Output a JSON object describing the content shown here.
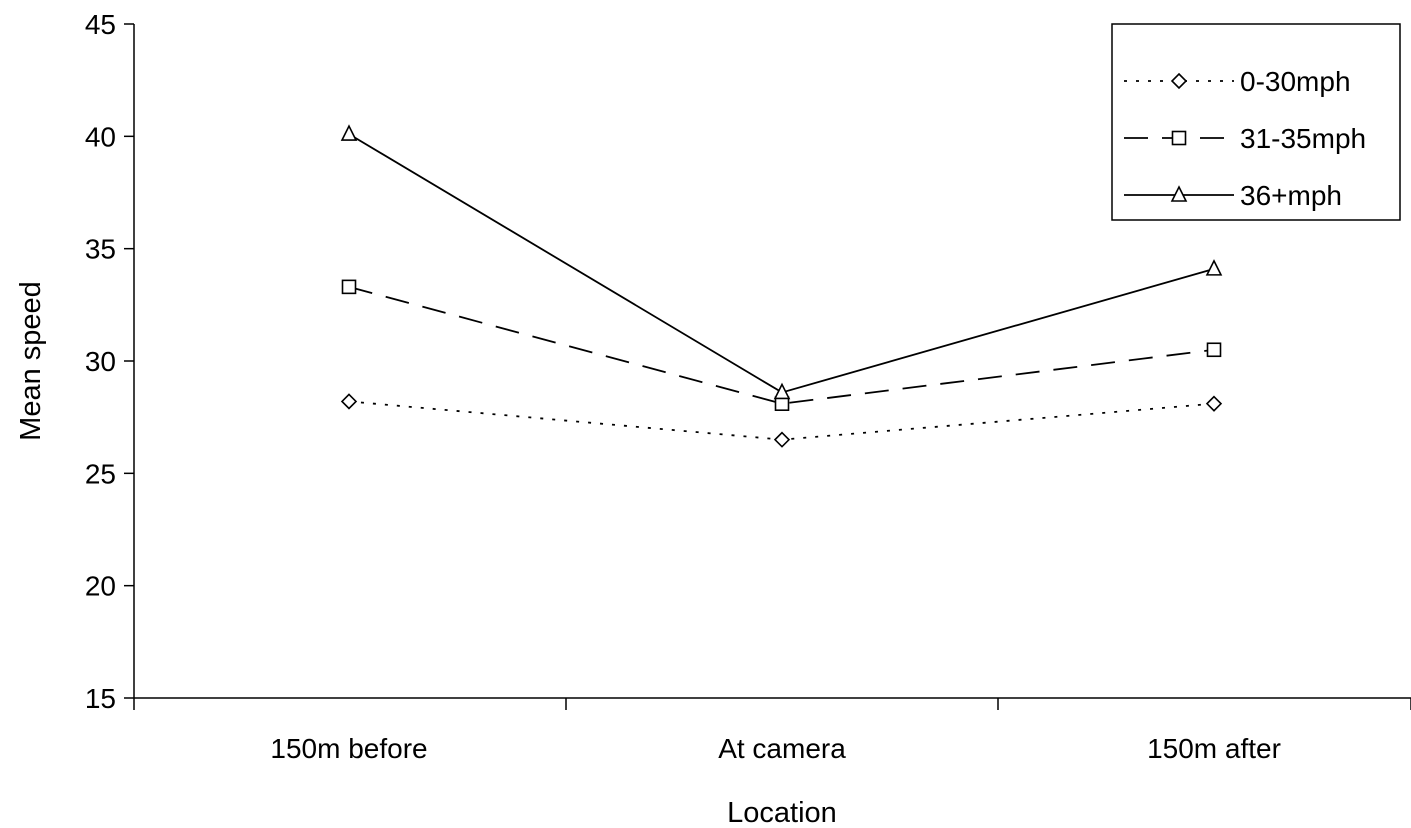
{
  "chart_data": {
    "type": "line",
    "title": "",
    "xlabel": "Location",
    "ylabel": "Mean speed",
    "categories": [
      "150m before",
      "At camera",
      "150m after"
    ],
    "ylim": [
      15,
      45
    ],
    "yticks": [
      15,
      20,
      25,
      30,
      35,
      40,
      45
    ],
    "grid": false,
    "legend_position": "top-right",
    "series": [
      {
        "name": "0-30mph",
        "values": [
          28.2,
          26.5,
          28.1
        ],
        "line_style": "dotted",
        "marker": "diamond",
        "color": "#000000"
      },
      {
        "name": "31-35mph",
        "values": [
          33.3,
          28.1,
          30.5
        ],
        "line_style": "dashed",
        "marker": "square",
        "color": "#000000"
      },
      {
        "name": "36+mph",
        "values": [
          40.1,
          28.6,
          34.1
        ],
        "line_style": "solid",
        "marker": "triangle",
        "color": "#000000"
      }
    ]
  }
}
